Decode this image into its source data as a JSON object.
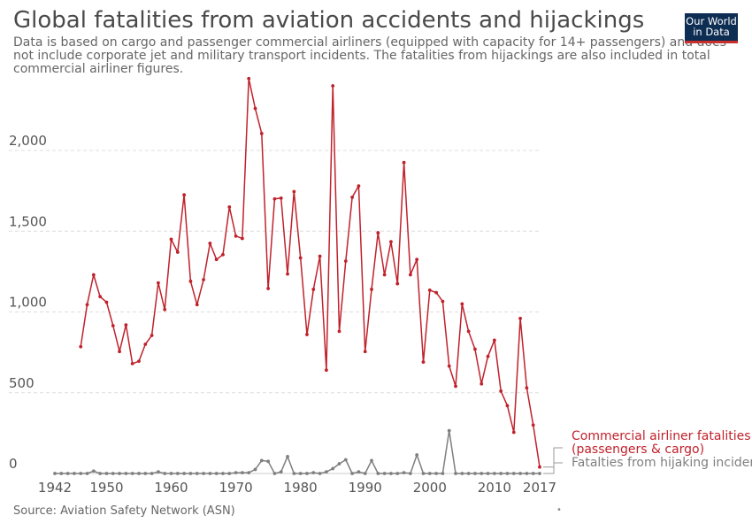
{
  "title": "Global fatalities from aviation accidents and hijackings",
  "subtitle": "Data is based on cargo and passenger commercial airliners (equipped with capacity for 14+ passengers) and does not include corporate jet and military transport incidents. The fatalities from hijackings are also included in total commercial airliner figures.",
  "logo": {
    "line1": "Our World",
    "line2": "in Data"
  },
  "source": "Source: Aviation Safety Network (ASN)",
  "menu_glyph": "•",
  "colors": {
    "commercial": "#c0222c",
    "hijacking": "#7f7f7f",
    "grid": "#dddddd",
    "axis_text": "#555555"
  },
  "chart_data": {
    "type": "line",
    "title": "Global fatalities from aviation accidents and hijackings",
    "xlabel": "",
    "ylabel": "",
    "x_ticks": [
      "1942",
      "1950",
      "1960",
      "1970",
      "1980",
      "1990",
      "2000",
      "2010",
      "2017"
    ],
    "y_ticks": [
      "0",
      "500",
      "1,000",
      "1,500",
      "2,000"
    ],
    "xlim": [
      1942,
      2017
    ],
    "ylim": [
      0,
      2400
    ],
    "grid": true,
    "legend": "right, inline labels at line ends",
    "series": [
      {
        "name": "Commercial airliner fatalities (passengers & cargo)",
        "legend_lines": [
          "Commercial airliner fatalities",
          "(passengers & cargo)"
        ],
        "color": "#c0222c",
        "x": [
          1946,
          1947,
          1948,
          1949,
          1950,
          1951,
          1952,
          1953,
          1954,
          1955,
          1956,
          1957,
          1958,
          1959,
          1960,
          1961,
          1962,
          1963,
          1964,
          1965,
          1966,
          1967,
          1968,
          1969,
          1970,
          1971,
          1972,
          1973,
          1974,
          1975,
          1976,
          1977,
          1978,
          1979,
          1980,
          1981,
          1982,
          1983,
          1984,
          1985,
          1986,
          1987,
          1988,
          1989,
          1990,
          1991,
          1992,
          1993,
          1994,
          1995,
          1996,
          1997,
          1998,
          1999,
          2000,
          2001,
          2002,
          2003,
          2004,
          2005,
          2006,
          2007,
          2008,
          2009,
          2010,
          2011,
          2012,
          2013,
          2014,
          2015,
          2016,
          2017
        ],
        "values": [
          785,
          1045,
          1230,
          1095,
          1060,
          915,
          755,
          920,
          680,
          695,
          800,
          855,
          1180,
          1015,
          1450,
          1370,
          1725,
          1190,
          1045,
          1200,
          1425,
          1325,
          1355,
          1650,
          1470,
          1455,
          2445,
          2260,
          2105,
          1145,
          1700,
          1705,
          1235,
          1745,
          1335,
          860,
          1140,
          1345,
          640,
          2400,
          880,
          1315,
          1710,
          1780,
          755,
          1140,
          1490,
          1230,
          1435,
          1175,
          1925,
          1230,
          1325,
          690,
          1135,
          1120,
          1065,
          665,
          540,
          1050,
          880,
          770,
          555,
          725,
          825,
          510,
          420,
          255,
          960,
          530,
          300,
          40
        ]
      },
      {
        "name": "Fatalties from hijaking incidents",
        "legend_lines": [
          "Fatalties from hijaking incidents"
        ],
        "color": "#7f7f7f",
        "x": [
          1942,
          1943,
          1944,
          1945,
          1946,
          1947,
          1948,
          1949,
          1950,
          1951,
          1952,
          1953,
          1954,
          1955,
          1956,
          1957,
          1958,
          1959,
          1960,
          1961,
          1962,
          1963,
          1964,
          1965,
          1966,
          1967,
          1968,
          1969,
          1970,
          1971,
          1972,
          1973,
          1974,
          1975,
          1976,
          1977,
          1978,
          1979,
          1980,
          1981,
          1982,
          1983,
          1984,
          1985,
          1986,
          1987,
          1988,
          1989,
          1990,
          1991,
          1992,
          1993,
          1994,
          1995,
          1996,
          1997,
          1998,
          1999,
          2000,
          2001,
          2002,
          2003,
          2004,
          2005,
          2006,
          2007,
          2008,
          2009,
          2010,
          2011,
          2012,
          2013,
          2014,
          2015,
          2016,
          2017
        ],
        "values": [
          0,
          0,
          0,
          0,
          0,
          0,
          15,
          0,
          0,
          0,
          0,
          0,
          0,
          0,
          0,
          0,
          10,
          0,
          0,
          0,
          0,
          0,
          0,
          0,
          0,
          0,
          0,
          0,
          5,
          5,
          5,
          25,
          80,
          75,
          0,
          10,
          105,
          0,
          0,
          0,
          5,
          0,
          10,
          30,
          60,
          85,
          0,
          10,
          0,
          80,
          0,
          0,
          0,
          0,
          5,
          0,
          115,
          0,
          0,
          0,
          0,
          265,
          0,
          0,
          0,
          0,
          0,
          0,
          0,
          0,
          0,
          0,
          0,
          0,
          0,
          0
        ]
      }
    ]
  }
}
